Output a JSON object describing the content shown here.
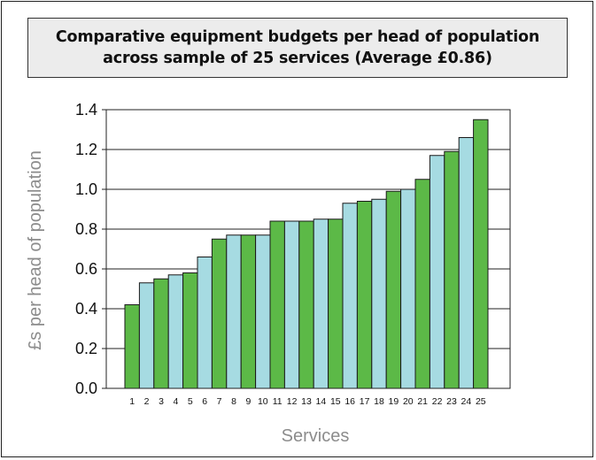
{
  "title": "Comparative equipment budgets per head of population\nacross sample of 25 services (Average £0.86)",
  "chart_data": {
    "type": "bar",
    "title": "Comparative equipment budgets per head of population across sample of 25 services (Average £0.86)",
    "xlabel": "Services",
    "ylabel": "£s per head of population",
    "categories": [
      "1",
      "2",
      "3",
      "4",
      "5",
      "6",
      "7",
      "8",
      "9",
      "10",
      "11",
      "12",
      "13",
      "14",
      "15",
      "16",
      "17",
      "18",
      "19",
      "20",
      "21",
      "22",
      "23",
      "24",
      "25"
    ],
    "values": [
      0.42,
      0.53,
      0.55,
      0.57,
      0.58,
      0.66,
      0.75,
      0.77,
      0.77,
      0.77,
      0.84,
      0.84,
      0.84,
      0.85,
      0.85,
      0.93,
      0.94,
      0.95,
      0.99,
      1.0,
      1.05,
      1.17,
      1.19,
      1.26,
      1.35
    ],
    "bar_colors": [
      "#5cb947",
      "#a6dbe2"
    ],
    "ylim": [
      0,
      1.4
    ],
    "yticks": [
      "0.0",
      "0.2",
      "0.4",
      "0.6",
      "0.8",
      "1.0",
      "1.2",
      "1.4"
    ],
    "grid": true
  }
}
